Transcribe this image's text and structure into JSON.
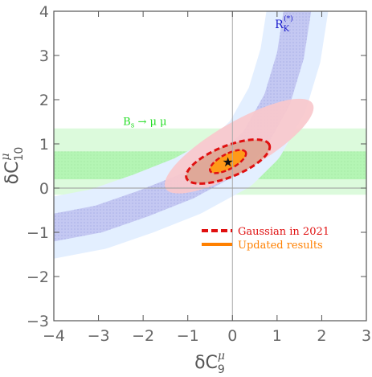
{
  "chart_data": {
    "type": "scatter",
    "title": "",
    "xlabel": {
      "base": "δC",
      "sub": "9",
      "sup": "μ"
    },
    "ylabel": {
      "base": "δC",
      "sub": "10",
      "sup": "μ"
    },
    "xlim": [
      -4,
      3
    ],
    "ylim": [
      -3,
      4
    ],
    "xticks": [
      -4,
      -3,
      -2,
      -1,
      0,
      1,
      2,
      3
    ],
    "yticks": [
      -3,
      -2,
      -1,
      0,
      1,
      2,
      3,
      4
    ],
    "xtick_labels": [
      "−4",
      "−3",
      "−2",
      "−1",
      "0",
      "1",
      "2",
      "3"
    ],
    "ytick_labels": [
      "−3",
      "−2",
      "−1",
      "0",
      "1",
      "2",
      "3",
      "4"
    ],
    "grid": false,
    "reference_lines": {
      "x": 0,
      "y": 0
    },
    "best_fit_point": {
      "x": -0.1,
      "y": 0.6,
      "marker": "★"
    },
    "constraint_regions": [
      {
        "id": "bs_band_2sigma",
        "kind": "horizontal_band",
        "y_range": [
          -0.15,
          1.35
        ],
        "color": "#dcfadc"
      },
      {
        "id": "bs_band_1sigma",
        "kind": "horizontal_band",
        "y_range": [
          0.2,
          0.83
        ],
        "color": "#b4f5b4"
      },
      {
        "id": "rk_band_2sigma",
        "kind": "curved_band",
        "centerline": [
          [
            -4.3,
            -0.95
          ],
          [
            -3,
            -0.7
          ],
          [
            -2,
            -0.35
          ],
          [
            -1,
            0.05
          ],
          [
            0,
            0.6
          ],
          [
            0.5,
            1.1
          ],
          [
            1,
            2.0
          ],
          [
            1.3,
            3.0
          ],
          [
            1.5,
            4.3
          ]
        ],
        "color": "#e3efff"
      },
      {
        "id": "rk_band_1sigma",
        "kind": "curved_band",
        "centerline": [
          [
            -4.3,
            -0.95
          ],
          [
            -3,
            -0.7
          ],
          [
            -2,
            -0.35
          ],
          [
            -1,
            0.05
          ],
          [
            0,
            0.6
          ],
          [
            0.5,
            1.1
          ],
          [
            1,
            2.0
          ],
          [
            1.3,
            3.0
          ],
          [
            1.5,
            4.3
          ]
        ],
        "color": "#c4c8f2"
      },
      {
        "id": "global_fit",
        "kind": "ellipse",
        "center": [
          0.15,
          0.95
        ],
        "semi_axes": [
          1.9,
          0.55
        ],
        "angle_deg": 30,
        "color": "#f8c8cc"
      },
      {
        "id": "gaussian_2021",
        "kind": "ellipse",
        "center": [
          -0.1,
          0.6
        ],
        "semi_axes": [
          1.0,
          0.35
        ],
        "angle_deg": 22,
        "color": "#d9a08a",
        "edge": "#e01010",
        "edge_style": "dashed"
      },
      {
        "id": "updated_results",
        "kind": "ellipse",
        "center": [
          -0.1,
          0.6
        ],
        "semi_axes": [
          0.45,
          0.17
        ],
        "angle_deg": 28,
        "color": "#ff9a18",
        "edge": "#e01010",
        "edge_style": "dashed"
      }
    ],
    "annotations": [
      {
        "id": "rk",
        "text_base": "R",
        "text_sub": "K",
        "text_sup": "(*)",
        "x": 0.95,
        "y": 3.62,
        "color": "#1a1acc"
      },
      {
        "id": "bs",
        "text": "B",
        "text_sub": "s",
        "text_rest": " → μ μ",
        "x": -2.45,
        "y": 1.43,
        "color": "#22dd22"
      }
    ],
    "legend": {
      "position": "center-right",
      "items": [
        {
          "label": "Gaussian in 2021",
          "style": "dashed",
          "color": "#e01010"
        },
        {
          "label": "Updated results",
          "style": "solid",
          "color": "#ff8000"
        }
      ]
    }
  }
}
